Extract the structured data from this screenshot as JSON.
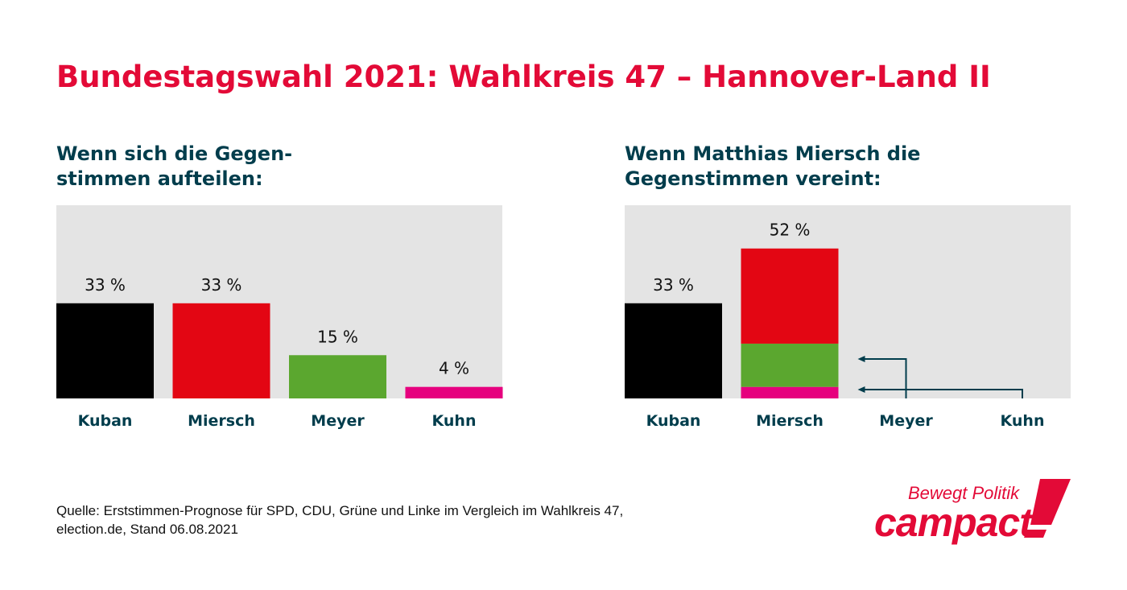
{
  "title": "Bundestagswahl 2021: Wahlkreis 47 – Hannover-Land II",
  "colors": {
    "title": "#e30a37",
    "text": "#003d4c",
    "panel": "#e4e4e4",
    "Kuban": "#000000",
    "Miersch": "#e30613",
    "Meyer": "#5ba72f",
    "Kuhn": "#e6007e"
  },
  "chart_data": [
    {
      "type": "bar",
      "title": "Wenn sich die Gegen-\nstimmen aufteilen:",
      "categories": [
        "Kuban",
        "Miersch",
        "Meyer",
        "Kuhn"
      ],
      "values": [
        33,
        33,
        15,
        4
      ],
      "labels": [
        "33 %",
        "33 %",
        "15 %",
        "4 %"
      ],
      "ylim": [
        0,
        67
      ],
      "grid": false
    },
    {
      "type": "bar",
      "stacked": true,
      "title": "Wenn Matthias Miersch die\nGegenstimmen vereint:",
      "categories": [
        "Kuban",
        "Miersch",
        "Meyer",
        "Kuhn"
      ],
      "stacks": [
        [
          {
            "from": "Kuban",
            "value": 33
          }
        ],
        [
          {
            "from": "Miersch",
            "value": 33
          },
          {
            "from": "Meyer",
            "value": 15
          },
          {
            "from": "Kuhn",
            "value": 4
          }
        ],
        [],
        []
      ],
      "labels": [
        "33 %",
        "52 %",
        "",
        ""
      ],
      "arrows": [
        {
          "from": "Meyer",
          "to": "Miersch"
        },
        {
          "from": "Kuhn",
          "to": "Miersch"
        }
      ],
      "ylim": [
        0,
        67
      ],
      "grid": false
    }
  ],
  "source": "Quelle: Erststimmen-Prognose für SPD, CDU, Grüne und Linke im Vergleich im Wahlkreis 47,\nelection.de, Stand 06.08.2021",
  "logo": {
    "tagline": "Bewegt Politik",
    "brand": "campact!"
  }
}
